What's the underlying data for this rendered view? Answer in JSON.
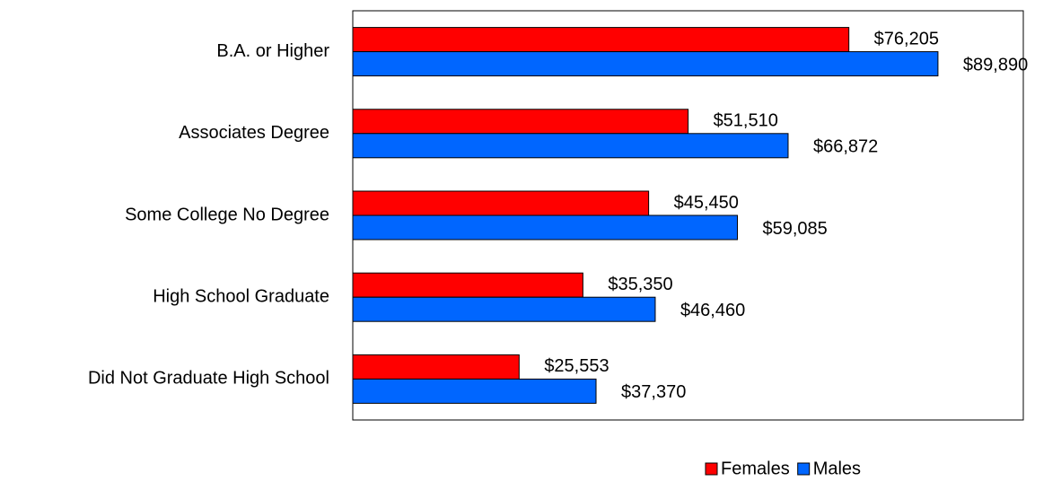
{
  "chart_data": {
    "type": "hbar",
    "categories": [
      "B.A. or Higher",
      "Associates Degree",
      "Some College No Degree",
      "High School Graduate",
      "Did Not Graduate High School"
    ],
    "series": [
      {
        "name": "Females",
        "color": "#ff0000",
        "values": [
          76205,
          51510,
          45450,
          35350,
          25553
        ],
        "value_labels": [
          "$76,205",
          "$51,510",
          "$45,450",
          "$35,350",
          "$25,553"
        ]
      },
      {
        "name": "Males",
        "color": "#0066ff",
        "values": [
          89890,
          66872,
          59085,
          46460,
          37370
        ],
        "value_labels": [
          "$89,890",
          "$66,872",
          "$59,085",
          "$46,460",
          "$37,370"
        ]
      }
    ],
    "xlim": [
      0,
      103000
    ],
    "legend": "bottom"
  }
}
